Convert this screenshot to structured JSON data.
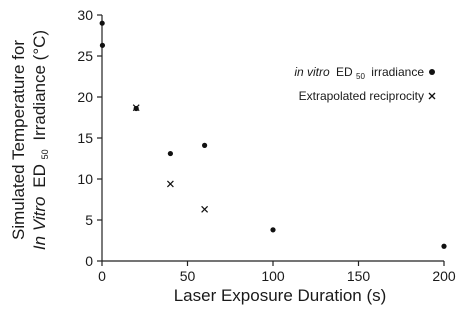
{
  "chart_data": {
    "type": "scatter",
    "xlabel": "Laser Exposure Duration (s)",
    "ylabel_line1": "Simulated Temperature for",
    "ylabel_line2_italic": "In Vitro",
    "ylabel_line2_pre": "ED",
    "ylabel_line2_sub": "50",
    "ylabel_line2_post": "Irradiance (°C)",
    "xlim": [
      0,
      200
    ],
    "ylim": [
      0,
      30
    ],
    "x_ticks": [
      0,
      50,
      100,
      150,
      200
    ],
    "y_ticks": [
      0,
      5,
      10,
      15,
      20,
      25,
      30
    ],
    "series": [
      {
        "name_italic": "in vitro",
        "name_pre": "ED",
        "name_sub": "50",
        "name_post": "irradiance",
        "marker": "dot",
        "x": [
          0.1,
          0.25,
          20,
          40,
          60,
          100,
          200
        ],
        "y": [
          29,
          26.3,
          18.6,
          13.1,
          14.1,
          3.8,
          1.8
        ]
      },
      {
        "name": "Extrapolated reciprocity",
        "marker": "x",
        "x": [
          20,
          40,
          60
        ],
        "y": [
          18.7,
          9.4,
          6.3
        ]
      }
    ]
  }
}
